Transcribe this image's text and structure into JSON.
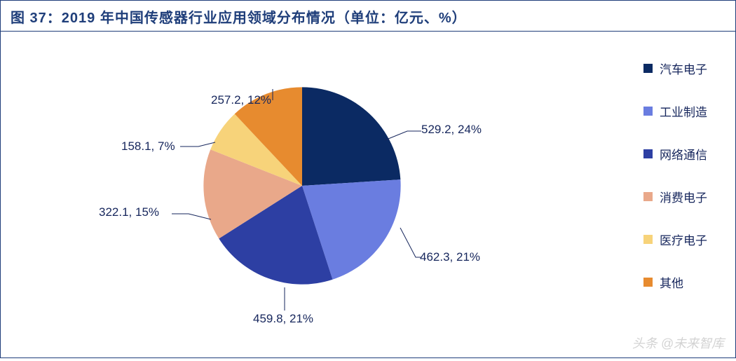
{
  "title": "图 37：2019 年中国传感器行业应用领域分布情况（单位：亿元、%）",
  "chart": {
    "type": "pie",
    "start_angle_deg": -90,
    "radius": 150,
    "background_color": "#ffffff",
    "border_color": "#1f3e7a",
    "label_color": "#16265c",
    "label_fontsize": 17,
    "title_color": "#1f3e7a",
    "title_fontsize": 20,
    "leader_color": "#16265c",
    "slices": [
      {
        "name": "汽车电子",
        "value": 529.2,
        "percent": 24,
        "color": "#0b2a63",
        "label": "529.2, 24%"
      },
      {
        "name": "工业制造",
        "value": 462.3,
        "percent": 21,
        "color": "#6a7de0",
        "label": "462.3, 21%"
      },
      {
        "name": "网络通信",
        "value": 459.8,
        "percent": 21,
        "color": "#2d3fa3",
        "label": "459.8, 21%"
      },
      {
        "name": "消费电子",
        "value": 322.1,
        "percent": 15,
        "color": "#e9a88a",
        "label": "322.1, 15%"
      },
      {
        "name": "医疗电子",
        "value": 158.1,
        "percent": 7,
        "color": "#f7d37a",
        "label": "158.1, 7%"
      },
      {
        "name": "其他",
        "value": 257.2,
        "percent": 12,
        "color": "#e78b2f",
        "label": "257.2, 12%"
      }
    ],
    "legend": {
      "position": "right",
      "items": [
        {
          "label": "汽车电子",
          "color": "#0b2a63"
        },
        {
          "label": "工业制造",
          "color": "#6a7de0"
        },
        {
          "label": "网络通信",
          "color": "#2d3fa3"
        },
        {
          "label": "消费电子",
          "color": "#e9a88a"
        },
        {
          "label": "医疗电子",
          "color": "#f7d37a"
        },
        {
          "label": "其他",
          "color": "#e78b2f"
        }
      ]
    }
  },
  "watermark": "头条 @未来智库"
}
